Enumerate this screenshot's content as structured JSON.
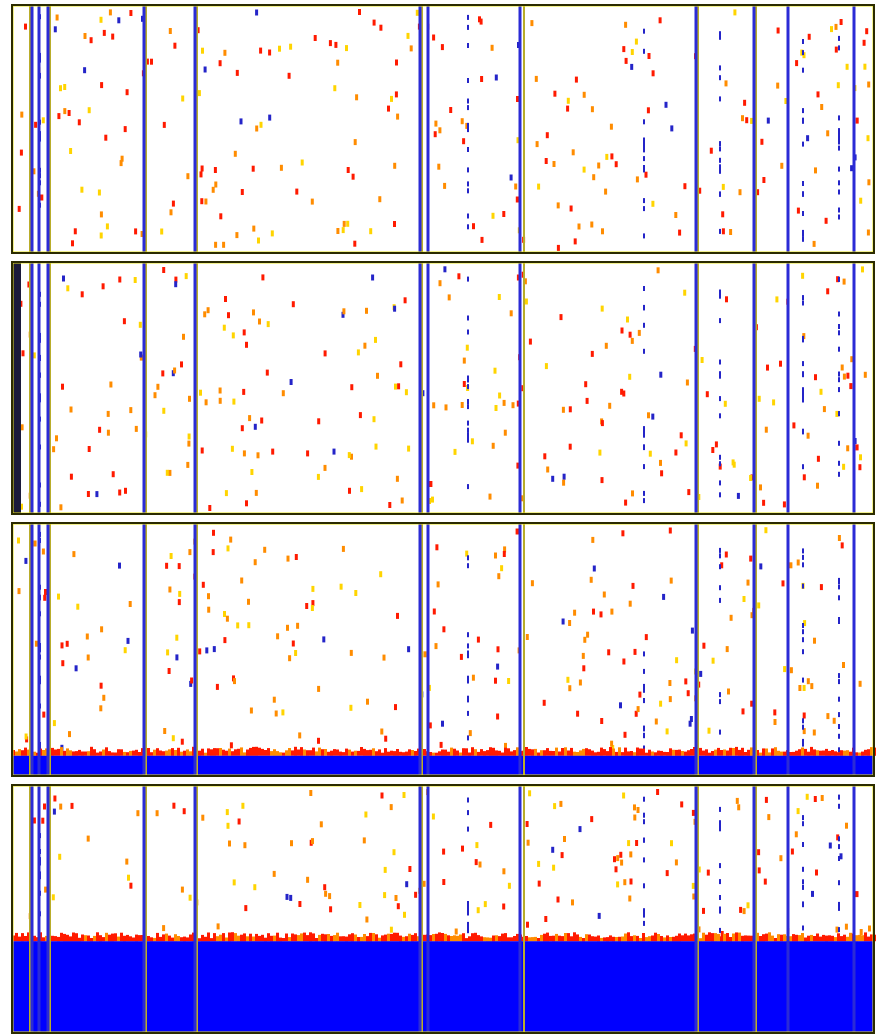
{
  "panels": [
    {
      "id": "panel-1",
      "accumulation_fraction": 0.0,
      "dark_left_strip": false
    },
    {
      "id": "panel-2",
      "accumulation_fraction": 0.0,
      "dark_left_strip": true
    },
    {
      "id": "panel-3",
      "accumulation_fraction": 0.08,
      "dark_left_strip": false
    },
    {
      "id": "panel-4",
      "accumulation_fraction": 0.37,
      "dark_left_strip": false
    }
  ],
  "colors": {
    "background": "#ffffff",
    "frame": "#2b2b00",
    "frame_inner": "#e6e01e",
    "wall": "#2b2bd6",
    "accumulated": "#0000ff",
    "particle_red": "#ff1a00",
    "particle_orange": "#ff8c00",
    "particle_yellow": "#ffd400",
    "particle_blue": "#2424c8"
  }
}
